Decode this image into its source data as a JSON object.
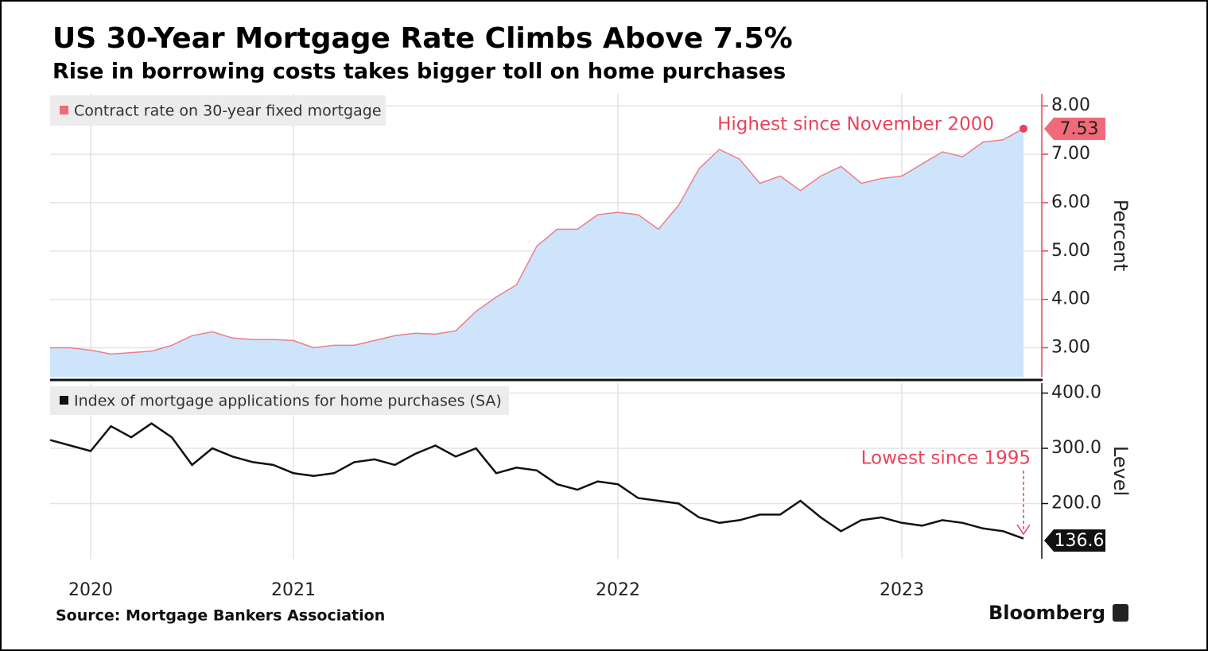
{
  "title": "US 30-Year Mortgage Rate Climbs Above 7.5%",
  "subtitle": "Rise in borrowing costs takes bigger toll on home purchases",
  "source": "Source: Mortgage Bankers Association",
  "brand": "Bloomberg",
  "chart_data": [
    {
      "type": "area",
      "categories": [
        null,
        null,
        null,
        null,
        null,
        null,
        null,
        null,
        null,
        null,
        null,
        null,
        null,
        null,
        null,
        null,
        null,
        null,
        null,
        null,
        null,
        null,
        null,
        null,
        null,
        null,
        null,
        null,
        null,
        null,
        null,
        null,
        null,
        null,
        null,
        null,
        null,
        null,
        null,
        null,
        null,
        null,
        null,
        null,
        null,
        null,
        null,
        null,
        null
      ],
      "series": [
        {
          "name": "Contract rate on 30-year fixed mortgage",
          "color": "#ee7d8c",
          "fill": "#cde4fb",
          "values": [
            3.0,
            3.0,
            2.95,
            2.87,
            2.9,
            2.93,
            3.05,
            3.25,
            3.33,
            3.2,
            3.17,
            3.17,
            3.15,
            3.0,
            3.05,
            3.05,
            3.15,
            3.25,
            3.3,
            3.28,
            3.35,
            3.75,
            4.05,
            4.3,
            5.1,
            5.45,
            5.45,
            5.75,
            5.8,
            5.75,
            5.45,
            5.95,
            6.7,
            7.1,
            6.9,
            6.4,
            6.55,
            6.25,
            6.55,
            6.75,
            6.4,
            6.5,
            6.55,
            6.8,
            7.05,
            6.95,
            7.25,
            7.3,
            7.53
          ]
        }
      ],
      "ylim": [
        2.4,
        8.25
      ],
      "yticks": [
        {
          "value": 3,
          "label": "3.00"
        },
        {
          "value": 4,
          "label": "4.00"
        },
        {
          "value": 5,
          "label": "5.00"
        },
        {
          "value": 6,
          "label": "6.00"
        },
        {
          "value": 7,
          "label": "7.00"
        },
        {
          "value": 8,
          "label": "8.00"
        }
      ],
      "ylabel": "Percent",
      "annotation": "Highest since November 2000",
      "grid": true
    },
    {
      "type": "line",
      "categories": [
        null,
        null,
        "2020",
        null,
        null,
        null,
        null,
        null,
        null,
        null,
        null,
        null,
        "2021",
        null,
        null,
        null,
        null,
        null,
        null,
        null,
        null,
        null,
        null,
        null,
        null,
        null,
        null,
        null,
        "2022",
        null,
        null,
        null,
        null,
        null,
        null,
        null,
        null,
        null,
        null,
        null,
        null,
        null,
        "2023",
        null,
        null,
        null,
        null,
        null,
        null
      ],
      "series": [
        {
          "name": "Index of mortgage applications for home purchases (SA)",
          "color": "#111111",
          "values": [
            315,
            305,
            295,
            340,
            320,
            345,
            320,
            270,
            300,
            285,
            275,
            270,
            255,
            250,
            255,
            275,
            280,
            270,
            290,
            305,
            285,
            300,
            255,
            265,
            260,
            235,
            225,
            240,
            235,
            210,
            205,
            200,
            175,
            165,
            170,
            180,
            180,
            205,
            175,
            150,
            170,
            175,
            165,
            160,
            170,
            165,
            155,
            150,
            136.6
          ]
        }
      ],
      "ylim": [
        100,
        418
      ],
      "yticks": [
        {
          "value": 200,
          "label": "200.0"
        },
        {
          "value": 300,
          "label": "300.0"
        },
        {
          "value": 400,
          "label": "400.0"
        }
      ],
      "ylabel": "Level",
      "annotation": "Lowest since 1995",
      "grid": true
    }
  ]
}
